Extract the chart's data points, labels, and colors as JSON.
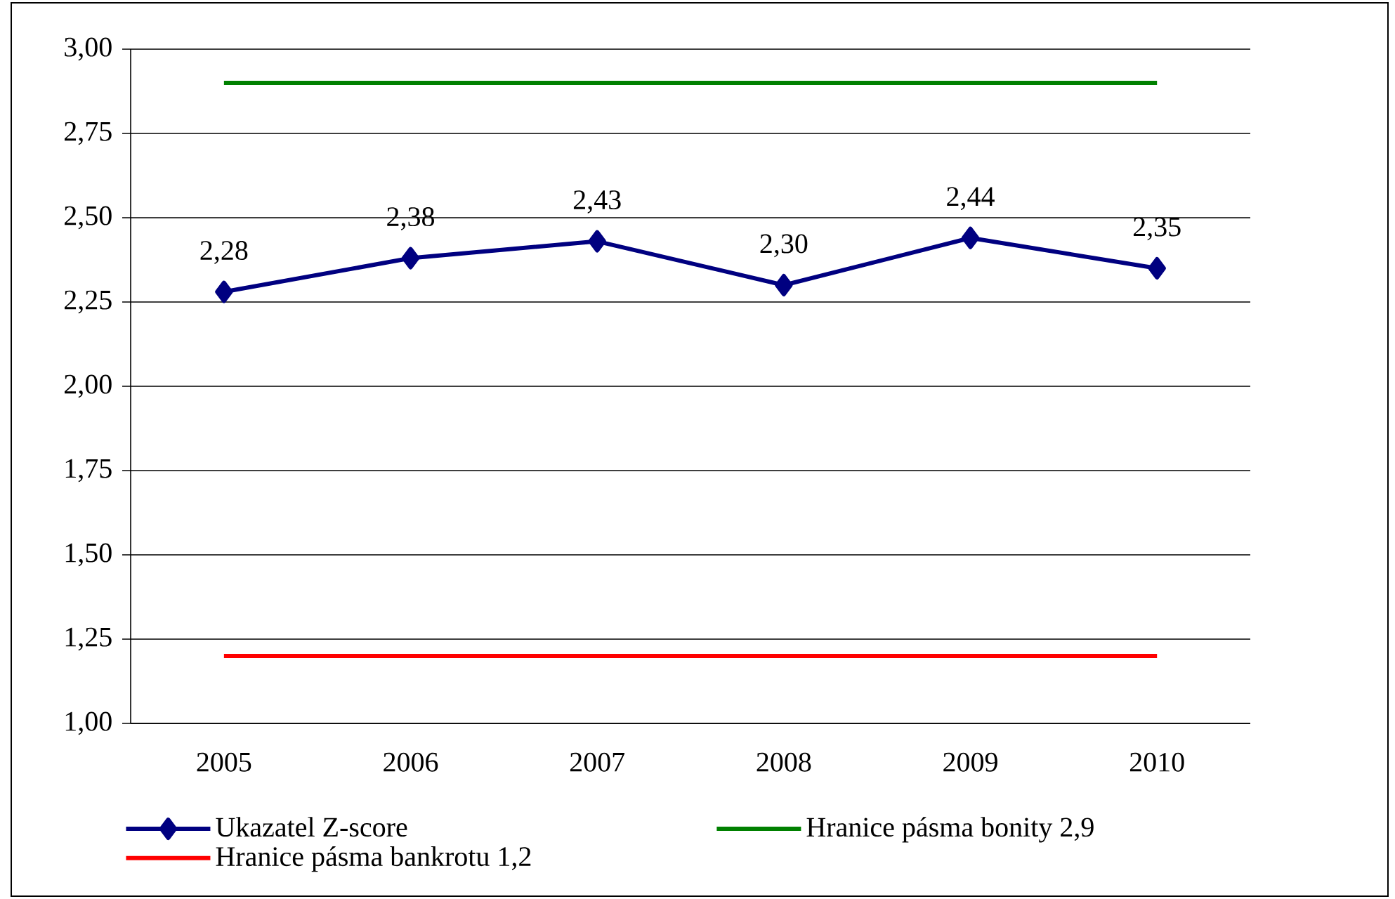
{
  "chart_data": {
    "type": "line",
    "categories": [
      "2005",
      "2006",
      "2007",
      "2008",
      "2009",
      "2010"
    ],
    "series": [
      {
        "name": "Ukazatel Z-score",
        "color": "#000080",
        "marker": "diamond",
        "values": [
          2.28,
          2.38,
          2.43,
          2.3,
          2.44,
          2.35
        ],
        "value_labels": [
          "2,28",
          "2,38",
          "2,43",
          "2,30",
          "2,44",
          "2,35"
        ]
      },
      {
        "name": "Hranice pásma bonity 2,9",
        "color": "#008000",
        "marker": "none",
        "values": [
          2.9,
          2.9,
          2.9,
          2.9,
          2.9,
          2.9
        ]
      },
      {
        "name": "Hranice pásma bankrotu 1,2",
        "color": "#ff0000",
        "marker": "none",
        "values": [
          1.2,
          1.2,
          1.2,
          1.2,
          1.2,
          1.2
        ]
      }
    ],
    "ylim": [
      1,
      3
    ],
    "yticks": [
      {
        "value": 1,
        "label": "1,00"
      },
      {
        "value": 1.25,
        "label": "1,25"
      },
      {
        "value": 1.5,
        "label": "1,50"
      },
      {
        "value": 1.75,
        "label": "1,75"
      },
      {
        "value": 2,
        "label": "2,00"
      },
      {
        "value": 2.25,
        "label": "2,25"
      },
      {
        "value": 2.5,
        "label": "2,50"
      },
      {
        "value": 2.75,
        "label": "2,75"
      },
      {
        "value": 3,
        "label": "3,00"
      }
    ],
    "grid": "y",
    "legend": "bottom"
  }
}
